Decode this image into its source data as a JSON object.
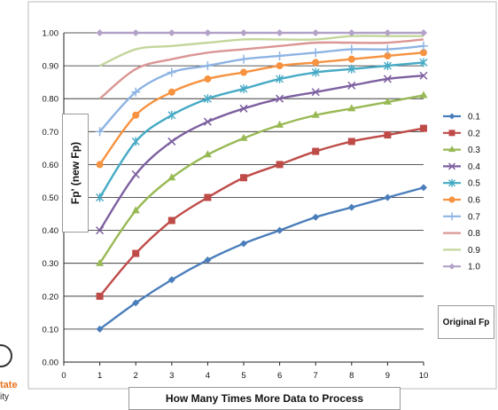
{
  "logo": {
    "line1": "tate",
    "line2": "ity"
  },
  "chart_data": {
    "type": "line",
    "title": "",
    "xlabel": "How Many Times More Data to Process",
    "ylabel": "Fp' (new Fp)",
    "xlim": [
      0,
      10
    ],
    "ylim": [
      0,
      1.0
    ],
    "x_ticks": [
      "0",
      "1",
      "2",
      "3",
      "4",
      "5",
      "6",
      "7",
      "8",
      "9",
      "10"
    ],
    "y_ticks": [
      "0.00",
      "0.10",
      "0.20",
      "0.30",
      "0.40",
      "0.50",
      "0.60",
      "0.70",
      "0.80",
      "0.90",
      "1.00"
    ],
    "grid": "horizontal",
    "legend_title": "Original Fp",
    "legend_position": "right",
    "x": [
      1,
      2,
      3,
      4,
      5,
      6,
      7,
      8,
      9,
      10
    ],
    "series": [
      {
        "name": "0.1",
        "color": "#4a7ebb",
        "marker": "diamond",
        "values": [
          0.1,
          0.18,
          0.25,
          0.31,
          0.36,
          0.4,
          0.44,
          0.47,
          0.5,
          0.53
        ]
      },
      {
        "name": "0.2",
        "color": "#be4b48",
        "marker": "square",
        "values": [
          0.2,
          0.33,
          0.43,
          0.5,
          0.56,
          0.6,
          0.64,
          0.67,
          0.69,
          0.71
        ]
      },
      {
        "name": "0.3",
        "color": "#98b954",
        "marker": "triangle",
        "values": [
          0.3,
          0.46,
          0.56,
          0.63,
          0.68,
          0.72,
          0.75,
          0.77,
          0.79,
          0.81
        ]
      },
      {
        "name": "0.4",
        "color": "#7d60a0",
        "marker": "x",
        "values": [
          0.4,
          0.57,
          0.67,
          0.73,
          0.77,
          0.8,
          0.82,
          0.84,
          0.86,
          0.87
        ]
      },
      {
        "name": "0.5",
        "color": "#46aac5",
        "marker": "star",
        "values": [
          0.5,
          0.67,
          0.75,
          0.8,
          0.83,
          0.86,
          0.88,
          0.89,
          0.9,
          0.91
        ]
      },
      {
        "name": "0.6",
        "color": "#f69240",
        "marker": "circle",
        "values": [
          0.6,
          0.75,
          0.82,
          0.86,
          0.88,
          0.9,
          0.91,
          0.92,
          0.93,
          0.94
        ]
      },
      {
        "name": "0.7",
        "color": "#8eb4e3",
        "marker": "plus",
        "values": [
          0.7,
          0.82,
          0.88,
          0.9,
          0.92,
          0.93,
          0.94,
          0.95,
          0.95,
          0.96
        ]
      },
      {
        "name": "0.8",
        "color": "#da9694",
        "marker": "none",
        "values": [
          0.8,
          0.89,
          0.92,
          0.94,
          0.95,
          0.96,
          0.97,
          0.97,
          0.97,
          0.98
        ]
      },
      {
        "name": "0.9",
        "color": "#c3d69b",
        "marker": "none",
        "values": [
          0.9,
          0.95,
          0.96,
          0.97,
          0.98,
          0.98,
          0.98,
          0.99,
          0.99,
          0.99
        ]
      },
      {
        "name": "1.0",
        "color": "#b3a2c7",
        "marker": "diamond",
        "values": [
          1.0,
          1.0,
          1.0,
          1.0,
          1.0,
          1.0,
          1.0,
          1.0,
          1.0,
          1.0
        ]
      }
    ]
  }
}
